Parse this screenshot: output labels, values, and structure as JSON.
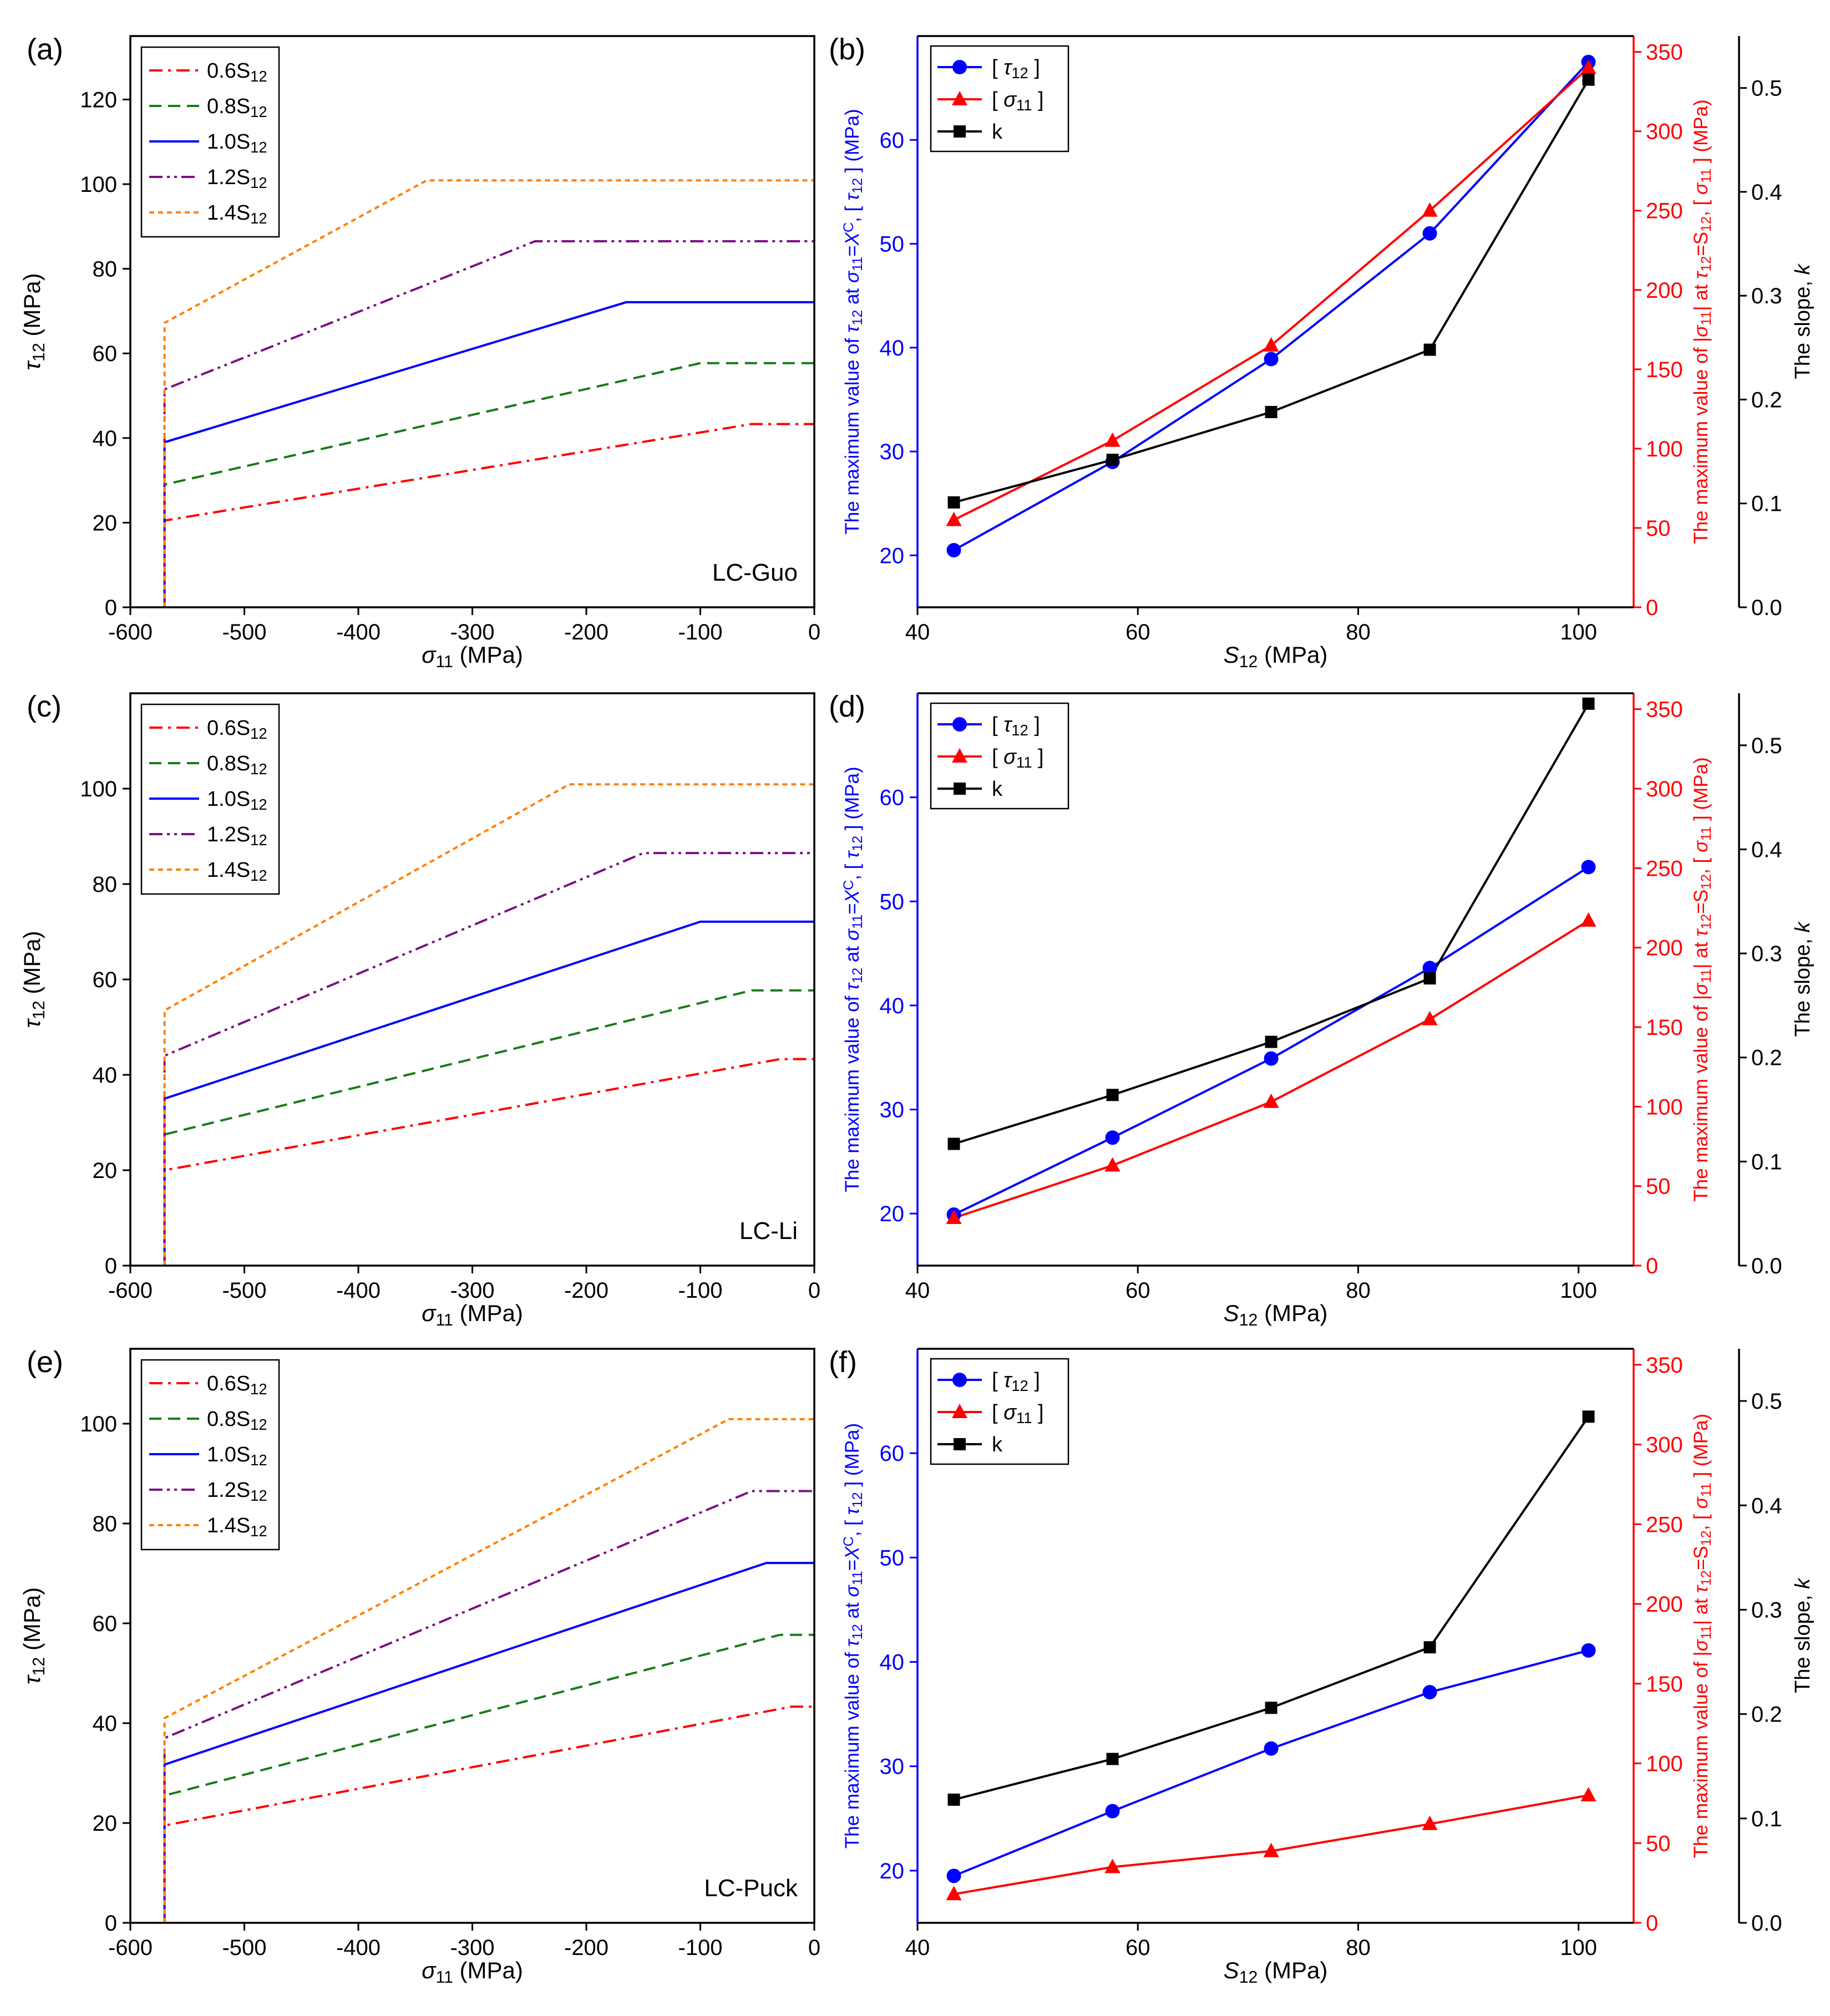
{
  "chart_data": [
    {
      "panel": "(a)",
      "type": "line",
      "xlabel": "σ11 (MPa)",
      "ylabel": "τ12 (MPa)",
      "xlim": [
        -600,
        0
      ],
      "ylim": [
        0,
        135
      ],
      "xticks": [
        -600,
        -500,
        -400,
        -300,
        -200,
        -100,
        0
      ],
      "yticks": [
        0,
        20,
        40,
        60,
        80,
        100,
        120
      ],
      "annotation": "LC-Guo",
      "series": [
        {
          "name": "0.6S12",
          "color": "#ff0000",
          "dash": "dashdot",
          "x": [
            -570,
            -570,
            -55,
            0
          ],
          "y": [
            0,
            20.5,
            43.3,
            43.3
          ]
        },
        {
          "name": "0.8S12",
          "color": "#1a7a1a",
          "dash": "dash",
          "x": [
            -570,
            -570,
            -100,
            0
          ],
          "y": [
            0,
            29,
            57.7,
            57.7
          ]
        },
        {
          "name": "1.0S12",
          "color": "#0000ff",
          "dash": "solid",
          "x": [
            -570,
            -570,
            -165,
            0
          ],
          "y": [
            0,
            39,
            72.1,
            72.1
          ]
        },
        {
          "name": "1.2S12",
          "color": "#7b1080",
          "dash": "dashdotdot",
          "x": [
            -570,
            -570,
            -245,
            0
          ],
          "y": [
            0,
            51.5,
            86.5,
            86.5
          ]
        },
        {
          "name": "1.4S12",
          "color": "#ff8000",
          "dash": "dot",
          "x": [
            -570,
            -570,
            -340,
            0
          ],
          "y": [
            0,
            67.2,
            100.9,
            100.9
          ]
        }
      ]
    },
    {
      "panel": "(b)",
      "type": "line",
      "xlabel": "S12 (MPa)",
      "ylabel_left": "The maximum value of τ12 at σ11=X^C, [τ12] (MPa)",
      "ylabel_right": "The maximum value of |σ11| at τ12=S12, [σ11] (MPa)",
      "ylabel_far": "The slope, k",
      "xlim": [
        40,
        105
      ],
      "xticks": [
        40,
        60,
        80,
        100
      ],
      "ylim_left": [
        15,
        70
      ],
      "yticks_left": [
        20,
        30,
        40,
        50,
        60
      ],
      "ylim_right": [
        0,
        360
      ],
      "yticks_right": [
        0,
        50,
        100,
        150,
        200,
        250,
        300,
        350
      ],
      "ylim_far": [
        0,
        0.55
      ],
      "yticks_far": [
        "0.0",
        "0.1",
        "0.2",
        "0.3",
        "0.4",
        "0.5"
      ],
      "x": [
        43.3,
        57.7,
        72.1,
        86.5,
        100.9
      ],
      "series": [
        {
          "name": "[τ12]",
          "axis": "left",
          "color": "#0000ff",
          "marker": "circle",
          "values": [
            20.5,
            29,
            38.9,
            51,
            67.5
          ]
        },
        {
          "name": "[σ11]",
          "axis": "right",
          "color": "#ff0000",
          "marker": "triangle",
          "values": [
            55,
            105,
            165,
            250,
            340
          ]
        },
        {
          "name": "k",
          "axis": "far",
          "color": "#000000",
          "marker": "square",
          "values": [
            0.101,
            0.142,
            0.188,
            0.248,
            0.508
          ]
        }
      ]
    },
    {
      "panel": "(c)",
      "type": "line",
      "xlabel": "σ11 (MPa)",
      "ylabel": "τ12 (MPa)",
      "xlim": [
        -600,
        0
      ],
      "ylim": [
        0,
        120
      ],
      "xticks": [
        -600,
        -500,
        -400,
        -300,
        -200,
        -100,
        0
      ],
      "yticks": [
        0,
        20,
        40,
        60,
        80,
        100
      ],
      "annotation": "LC-Li",
      "series": [
        {
          "name": "0.6S12",
          "color": "#ff0000",
          "dash": "dashdot",
          "x": [
            -570,
            -570,
            -30,
            0
          ],
          "y": [
            0,
            20,
            43.3,
            43.3
          ]
        },
        {
          "name": "0.8S12",
          "color": "#1a7a1a",
          "dash": "dash",
          "x": [
            -570,
            -570,
            -55,
            0
          ],
          "y": [
            0,
            27.5,
            57.7,
            57.7
          ]
        },
        {
          "name": "1.0S12",
          "color": "#0000ff",
          "dash": "solid",
          "x": [
            -570,
            -570,
            -100,
            0
          ],
          "y": [
            0,
            35,
            72.1,
            72.1
          ]
        },
        {
          "name": "1.2S12",
          "color": "#7b1080",
          "dash": "dashdotdot",
          "x": [
            -570,
            -570,
            -150,
            0
          ],
          "y": [
            0,
            44,
            86.5,
            86.5
          ]
        },
        {
          "name": "1.4S12",
          "color": "#ff8000",
          "dash": "dot",
          "x": [
            -570,
            -570,
            -215,
            0
          ],
          "y": [
            0,
            53.5,
            100.9,
            100.9
          ]
        }
      ]
    },
    {
      "panel": "(d)",
      "type": "line",
      "xlabel": "S12 (MPa)",
      "ylabel_left": "The maximum value of τ12 at σ11=X^C, [τ12] (MPa)",
      "ylabel_right": "The maximum value of |σ11| at τ12=S12, [σ11] (MPa)",
      "ylabel_far": "The slope, k",
      "xlim": [
        40,
        105
      ],
      "xticks": [
        40,
        60,
        80,
        100
      ],
      "ylim_left": [
        15,
        70
      ],
      "yticks_left": [
        20,
        30,
        40,
        50,
        60
      ],
      "ylim_right": [
        0,
        360
      ],
      "yticks_right": [
        0,
        50,
        100,
        150,
        200,
        250,
        300,
        350
      ],
      "ylim_far": [
        0,
        0.55
      ],
      "yticks_far": [
        "0.0",
        "0.1",
        "0.2",
        "0.3",
        "0.4",
        "0.5"
      ],
      "x": [
        43.3,
        57.7,
        72.1,
        86.5,
        100.9
      ],
      "series": [
        {
          "name": "[τ12]",
          "axis": "left",
          "color": "#0000ff",
          "marker": "circle",
          "values": [
            19.9,
            27.3,
            34.9,
            43.6,
            53.3
          ]
        },
        {
          "name": "[σ11]",
          "axis": "right",
          "color": "#ff0000",
          "marker": "triangle",
          "values": [
            30,
            63,
            103,
            155,
            217
          ]
        },
        {
          "name": "k",
          "axis": "far",
          "color": "#000000",
          "marker": "square",
          "values": [
            0.117,
            0.164,
            0.215,
            0.276,
            0.54
          ]
        }
      ]
    },
    {
      "panel": "(e)",
      "type": "line",
      "xlabel": "σ11 (MPa)",
      "ylabel": "τ12 (MPa)",
      "xlim": [
        -600,
        0
      ],
      "ylim": [
        0,
        115
      ],
      "xticks": [
        -600,
        -500,
        -400,
        -300,
        -200,
        -100,
        0
      ],
      "yticks": [
        0,
        20,
        40,
        60,
        80,
        100
      ],
      "annotation": "LC-Puck",
      "series": [
        {
          "name": "0.6S12",
          "color": "#ff0000",
          "dash": "dashdot",
          "x": [
            -570,
            -570,
            -20,
            0
          ],
          "y": [
            0,
            19.5,
            43.3,
            43.3
          ]
        },
        {
          "name": "0.8S12",
          "color": "#1a7a1a",
          "dash": "dash",
          "x": [
            -570,
            -570,
            -30,
            0
          ],
          "y": [
            0,
            25.5,
            57.7,
            57.7
          ]
        },
        {
          "name": "1.0S12",
          "color": "#0000ff",
          "dash": "solid",
          "x": [
            -570,
            -570,
            -42,
            0
          ],
          "y": [
            0,
            31.7,
            72.1,
            72.1
          ]
        },
        {
          "name": "1.2S12",
          "color": "#7b1080",
          "dash": "dashdotdot",
          "x": [
            -570,
            -570,
            -55,
            0
          ],
          "y": [
            0,
            37,
            86.5,
            86.5
          ]
        },
        {
          "name": "1.4S12",
          "color": "#ff8000",
          "dash": "dot",
          "x": [
            -570,
            -570,
            -75,
            0
          ],
          "y": [
            0,
            41,
            100.9,
            100.9
          ]
        }
      ]
    },
    {
      "panel": "(f)",
      "type": "line",
      "xlabel": "S12 (MPa)",
      "ylabel_left": "The maximum value of τ12 at σ11=X^C, [τ12] (MPa)",
      "ylabel_right": "The maximum value of |σ11| at τ12=S12, [σ11] (MPa)",
      "ylabel_far": "The slope, k",
      "xlim": [
        40,
        105
      ],
      "xticks": [
        40,
        60,
        80,
        100
      ],
      "ylim_left": [
        15,
        70
      ],
      "yticks_left": [
        20,
        30,
        40,
        50,
        60
      ],
      "ylim_right": [
        0,
        360
      ],
      "yticks_right": [
        0,
        50,
        100,
        150,
        200,
        250,
        300,
        350
      ],
      "ylim_far": [
        0,
        0.55
      ],
      "yticks_far": [
        "0.0",
        "0.1",
        "0.2",
        "0.3",
        "0.4",
        "0.5"
      ],
      "x": [
        43.3,
        57.7,
        72.1,
        86.5,
        100.9
      ],
      "series": [
        {
          "name": "[τ12]",
          "axis": "left",
          "color": "#0000ff",
          "marker": "circle",
          "values": [
            19.5,
            25.7,
            31.7,
            37.1,
            41.1
          ]
        },
        {
          "name": "[σ11]",
          "axis": "right",
          "color": "#ff0000",
          "marker": "triangle",
          "values": [
            18,
            35,
            45,
            62,
            80
          ]
        },
        {
          "name": "k",
          "axis": "far",
          "color": "#000000",
          "marker": "square",
          "values": [
            0.118,
            0.157,
            0.206,
            0.264,
            0.485
          ]
        }
      ]
    }
  ]
}
